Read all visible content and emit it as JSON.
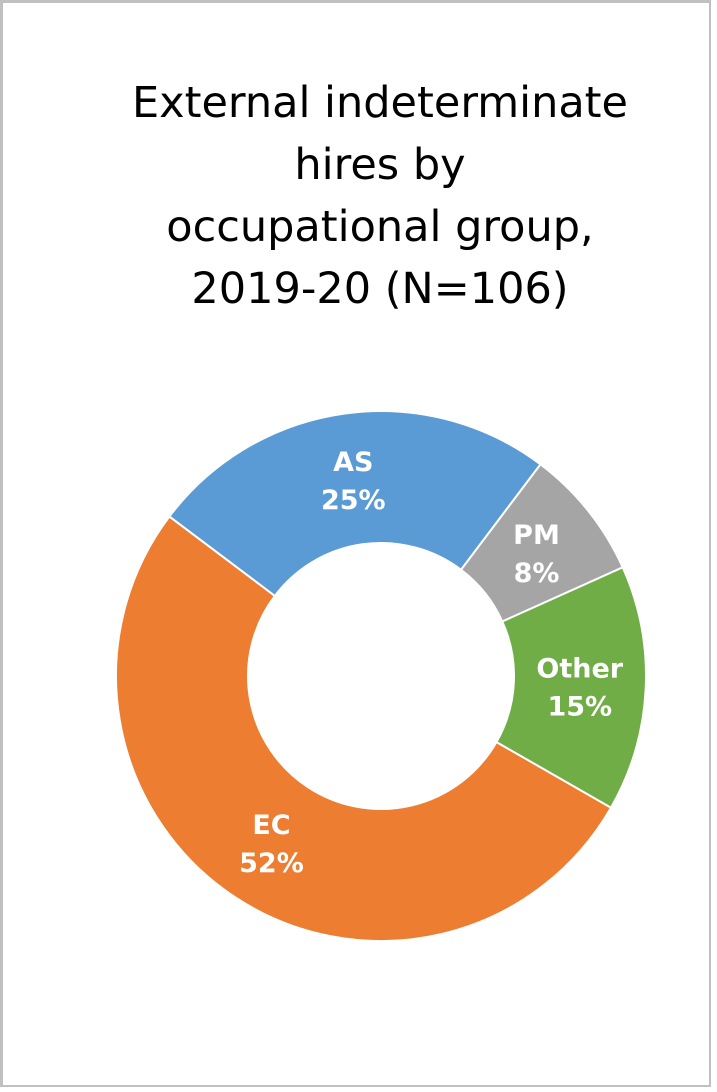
{
  "chart_data": {
    "type": "pie",
    "donut": true,
    "title_lines": [
      "External indeterminate",
      "hires by",
      "occupational group,",
      "2019-20 (N=106)"
    ],
    "slices": [
      {
        "label": "AS",
        "value": 25,
        "value_label": "25%",
        "color": "#5B9BD5"
      },
      {
        "label": "PM",
        "value": 8,
        "value_label": "8%",
        "color": "#A5A5A5"
      },
      {
        "label": "Other",
        "value": 15,
        "value_label": "15%",
        "color": "#70AD47"
      },
      {
        "label": "EC",
        "value": 52,
        "value_label": "52%",
        "color": "#ED7D31"
      }
    ],
    "legend": "none"
  }
}
